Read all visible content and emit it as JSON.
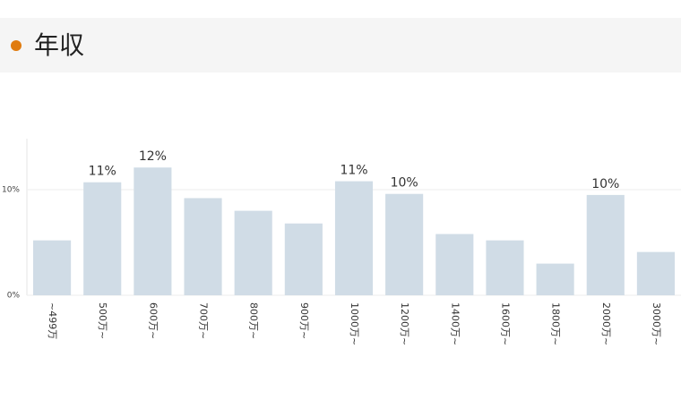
{
  "chart_data": {
    "type": "bar",
    "title": "年収",
    "categories": [
      "~499万",
      "500万~",
      "600万~",
      "700万~",
      "800万~",
      "900万~",
      "1000万~",
      "1200万~",
      "1400万~",
      "1600万~",
      "1800万~",
      "2000万~",
      "3000万~"
    ],
    "values": [
      5.2,
      10.7,
      12.1,
      9.2,
      8.0,
      6.8,
      10.8,
      9.6,
      5.8,
      5.2,
      3.0,
      9.5,
      4.1
    ],
    "value_labels": [
      null,
      "11%",
      "12%",
      null,
      null,
      null,
      "11%",
      "10%",
      null,
      null,
      null,
      "10%",
      null
    ],
    "color": "#d0dce6",
    "ylim": [
      0,
      15
    ],
    "yticks": [
      {
        "value": 0,
        "label": "0%"
      },
      {
        "value": 10,
        "label": "10%"
      }
    ],
    "grid": true
  }
}
